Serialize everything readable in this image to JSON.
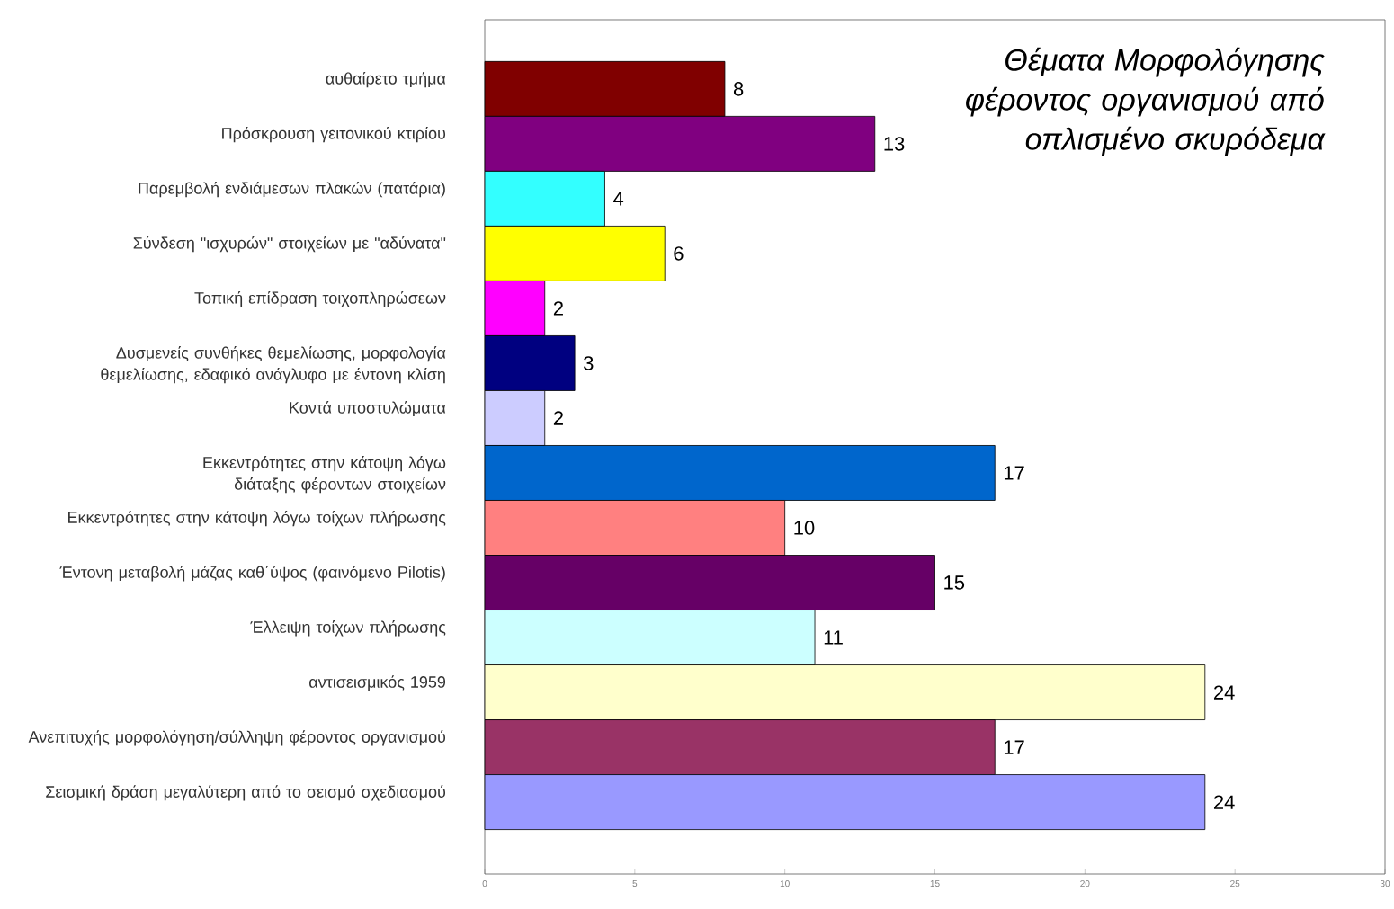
{
  "chart_data": {
    "type": "bar",
    "orientation": "horizontal",
    "title": "Θέματα Μορφολόγησης φέροντος οργανισμού από οπλισμένο σκυρόδεμα",
    "categories": [
      "αυθαίρετο τμήμα",
      "Πρόσκρουση γειτονικού κτιρίου",
      "Παρεμβολή ενδιάμεσων πλακών (πατάρια)",
      "Σύνδεση \"ισχυρών\" στοιχείων με \"αδύνατα\"",
      "Τοπική επίδραση τοιχοπληρώσεων",
      "Δυσμενείς συνθήκες θεμελίωσης, μορφολογία θεμελίωσης, εδαφικό ανάγλυφο με έντονη κλίση",
      "Κοντά υποστυλώματα",
      "Εκκεντρότητες στην κάτοψη λόγω διάταξης φέροντων στοιχείων",
      "Εκκεντρότητες στην κάτοψη λόγω τοίχων πλήρωσης",
      "Έντονη μεταβολή μάζας καθ΄ύψος (φαινόμενο Pilotis)",
      "Έλλειψη τοίχων πλήρωσης",
      "αντισεισμικός 1959",
      "Ανεπιτυχής μορφολόγηση/σύλληψη φέροντος οργανισμού",
      "Σεισμική δράση μεγαλύτερη από το σεισμό σχεδιασμού"
    ],
    "values": [
      8,
      13,
      4,
      6,
      2,
      3,
      2,
      17,
      10,
      15,
      11,
      24,
      17,
      24
    ],
    "colors": [
      "#800000",
      "#800080",
      "#33ffff",
      "#ffff00",
      "#ff00ff",
      "#000080",
      "#ccccff",
      "#0066cc",
      "#ff8080",
      "#660066",
      "#ccffff",
      "#ffffcc",
      "#993366",
      "#9999ff"
    ],
    "xlim": [
      0,
      30
    ],
    "xticks": [
      0,
      5,
      10,
      15,
      20,
      25,
      30
    ],
    "data_labels": true
  }
}
